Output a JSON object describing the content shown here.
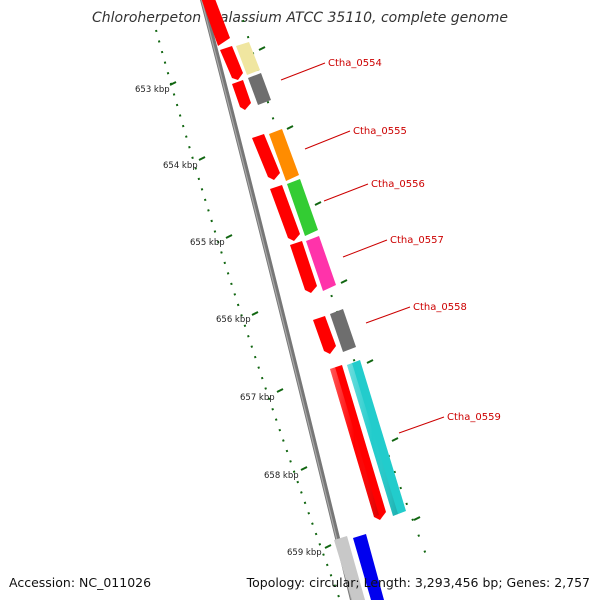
{
  "title": "Chloroherpeton thalassium ATCC 35110, complete genome",
  "accession": "Accession: NC_011026",
  "summary": "Topology: circular; Length: 3,293,456 bp; Genes: 2,757",
  "ticks": [
    {
      "label": "653 kbp"
    },
    {
      "label": "654 kbp"
    },
    {
      "label": "655 kbp"
    },
    {
      "label": "656 kbp"
    },
    {
      "label": "657 kbp"
    },
    {
      "label": "658 kbp"
    },
    {
      "label": "659 kbp"
    }
  ],
  "genes": [
    {
      "label": "Ctha_0554",
      "color": "#f0e6a0"
    },
    {
      "label": "Ctha_0555",
      "color": "#ff8c00"
    },
    {
      "label": "Ctha_0556",
      "color": "#33cc33"
    },
    {
      "label": "Ctha_0557",
      "color": "#ff33aa"
    },
    {
      "label": "Ctha_0558",
      "color": "#6e6e6e"
    },
    {
      "label": "Ctha_0559",
      "color": "#22cccc"
    }
  ],
  "colors": {
    "cds": "#ff0000",
    "backbone": "#777777",
    "tick": "#116611",
    "label": "#cc0000",
    "other_gene_gray": "#c8c8c8",
    "other_gene_blue": "#0000ee"
  }
}
